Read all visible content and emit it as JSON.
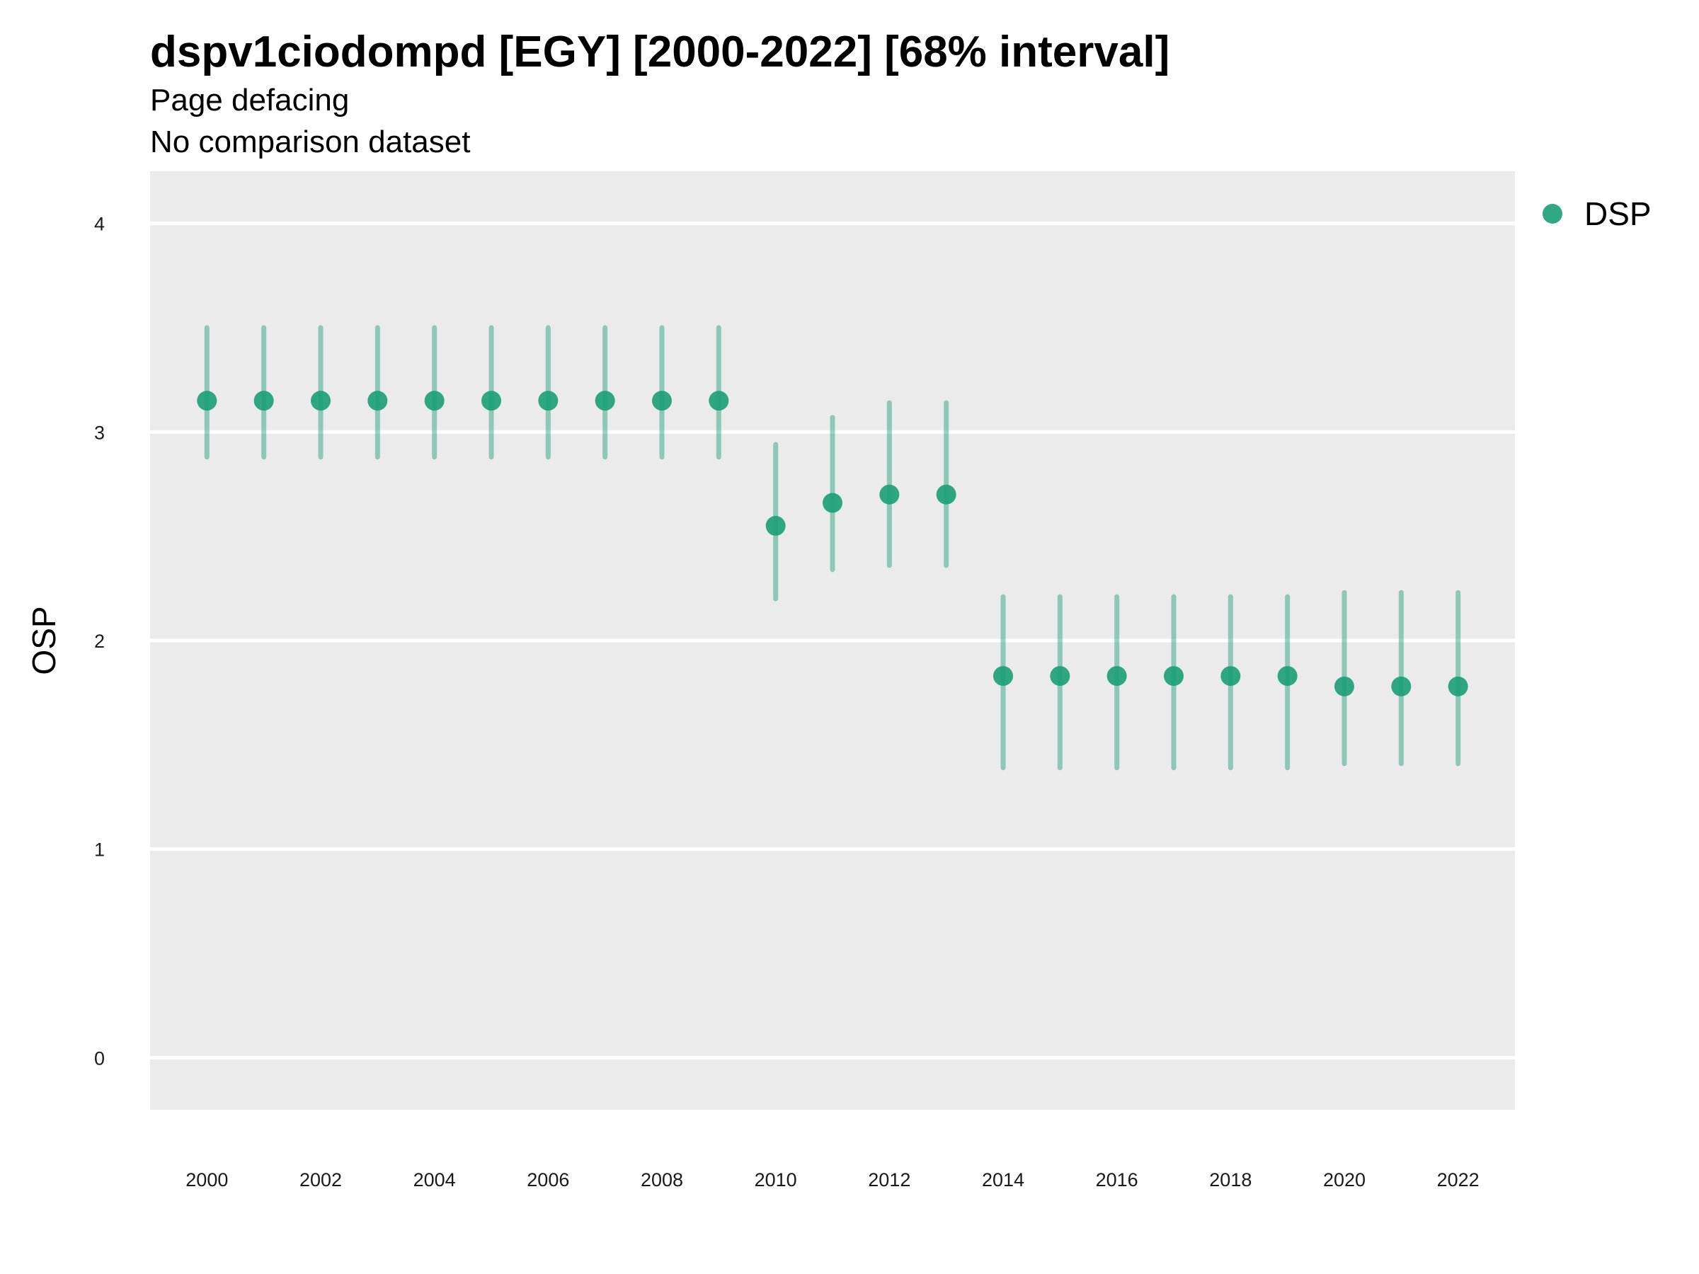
{
  "chart_data": {
    "type": "scatter",
    "title": "dspv1ciodompd [EGY] [2000-2022] [68% interval]",
    "subtitle": "Page defacing",
    "subtitle2": "No comparison dataset",
    "xlabel": "",
    "ylabel": "OSP",
    "ylim": [
      -0.25,
      4.25
    ],
    "xlim": [
      1999,
      2023
    ],
    "yticks": [
      0,
      1,
      2,
      3,
      4
    ],
    "xticks": [
      2000,
      2002,
      2004,
      2006,
      2008,
      2010,
      2012,
      2014,
      2016,
      2018,
      2020,
      2022
    ],
    "grid": true,
    "legend_position": "right",
    "colors": {
      "series": "#1b9e77",
      "panel": "#ebebeb",
      "grid": "#ffffff"
    },
    "series": [
      {
        "name": "DSP",
        "x": [
          2000,
          2001,
          2002,
          2003,
          2004,
          2005,
          2006,
          2007,
          2008,
          2009,
          2010,
          2011,
          2012,
          2013,
          2014,
          2015,
          2016,
          2017,
          2018,
          2019,
          2020,
          2021,
          2022
        ],
        "y": [
          3.15,
          3.15,
          3.15,
          3.15,
          3.15,
          3.15,
          3.15,
          3.15,
          3.15,
          3.15,
          2.55,
          2.66,
          2.7,
          2.7,
          1.83,
          1.83,
          1.83,
          1.83,
          1.83,
          1.83,
          1.78,
          1.78,
          1.78
        ],
        "lower": [
          2.88,
          2.88,
          2.88,
          2.88,
          2.88,
          2.88,
          2.88,
          2.88,
          2.88,
          2.88,
          2.2,
          2.34,
          2.36,
          2.36,
          1.39,
          1.39,
          1.39,
          1.39,
          1.39,
          1.39,
          1.41,
          1.41,
          1.41
        ],
        "upper": [
          3.5,
          3.5,
          3.5,
          3.5,
          3.5,
          3.5,
          3.5,
          3.5,
          3.5,
          3.5,
          2.94,
          3.07,
          3.14,
          3.14,
          2.21,
          2.21,
          2.21,
          2.21,
          2.21,
          2.21,
          2.23,
          2.23,
          2.23
        ]
      }
    ]
  }
}
